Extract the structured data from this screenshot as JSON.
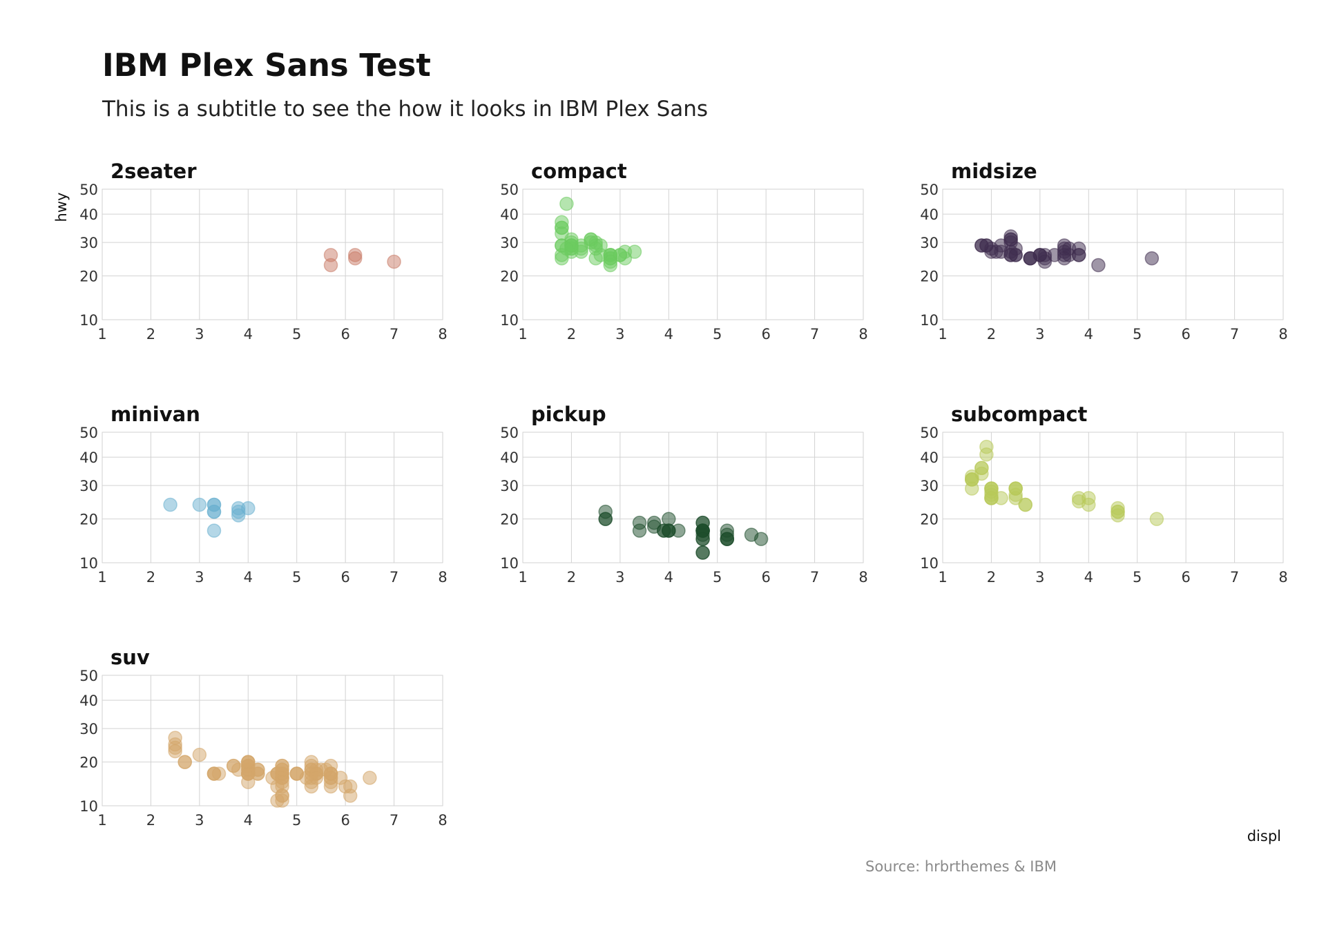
{
  "title": "IBM Plex Sans Test",
  "subtitle": "This is a subtitle to see the how it looks in IBM Plex Sans",
  "caption": "Source: hrbrthemes & IBM",
  "chart_data": {
    "type": "scatter",
    "xlabel": "displ",
    "ylabel": "hwy",
    "xlim": [
      1,
      8
    ],
    "ylim": [
      10,
      50
    ],
    "x_ticks": [
      1,
      2,
      3,
      4,
      5,
      6,
      7,
      8
    ],
    "y_ticks": [
      10,
      20,
      30,
      40,
      50
    ],
    "grid": true,
    "facets": [
      {
        "name": "2seater",
        "color": "#c97b67",
        "points": [
          [
            5.7,
            26
          ],
          [
            5.7,
            23
          ],
          [
            6.2,
            26
          ],
          [
            6.2,
            25
          ],
          [
            7.0,
            24
          ]
        ]
      },
      {
        "name": "compact",
        "color": "#6ccb5f",
        "points": [
          [
            1.8,
            29
          ],
          [
            1.8,
            29
          ],
          [
            2.0,
            31
          ],
          [
            2.0,
            30
          ],
          [
            2.8,
            26
          ],
          [
            2.8,
            26
          ],
          [
            3.1,
            27
          ],
          [
            1.8,
            26
          ],
          [
            1.8,
            25
          ],
          [
            2.0,
            28
          ],
          [
            2.0,
            27
          ],
          [
            2.8,
            25
          ],
          [
            2.8,
            25
          ],
          [
            3.1,
            25
          ],
          [
            2.2,
            27
          ],
          [
            2.2,
            29
          ],
          [
            2.4,
            31
          ],
          [
            2.4,
            31
          ],
          [
            3.0,
            26
          ],
          [
            3.0,
            26
          ],
          [
            3.3,
            27
          ],
          [
            1.8,
            35
          ],
          [
            1.8,
            37
          ],
          [
            1.8,
            35
          ],
          [
            1.9,
            44
          ],
          [
            2.0,
            29
          ],
          [
            2.0,
            29
          ],
          [
            2.0,
            28
          ],
          [
            2.0,
            29
          ],
          [
            2.5,
            29
          ],
          [
            2.5,
            30
          ],
          [
            2.8,
            26
          ],
          [
            2.8,
            23
          ],
          [
            2.8,
            24
          ],
          [
            2.6,
            26
          ],
          [
            2.5,
            25
          ],
          [
            2.2,
            28
          ],
          [
            1.8,
            33
          ],
          [
            2.4,
            30
          ],
          [
            2.6,
            29
          ],
          [
            2.5,
            28
          ],
          [
            1.9,
            28
          ]
        ]
      },
      {
        "name": "midsize",
        "color": "#3f2d4f",
        "points": [
          [
            2.4,
            26
          ],
          [
            2.4,
            26
          ],
          [
            2.5,
            26
          ],
          [
            3.1,
            25
          ],
          [
            3.5,
            29
          ],
          [
            3.6,
            26
          ],
          [
            2.4,
            27
          ],
          [
            3.0,
            26
          ],
          [
            3.3,
            26
          ],
          [
            3.8,
            26
          ],
          [
            2.8,
            25
          ],
          [
            3.1,
            26
          ],
          [
            4.2,
            23
          ],
          [
            5.3,
            25
          ],
          [
            2.2,
            29
          ],
          [
            2.2,
            27
          ],
          [
            2.4,
            31
          ],
          [
            2.4,
            31
          ],
          [
            3.0,
            26
          ],
          [
            3.0,
            26
          ],
          [
            3.5,
            28
          ],
          [
            1.8,
            29
          ],
          [
            1.8,
            29
          ],
          [
            2.0,
            28
          ],
          [
            2.0,
            27
          ],
          [
            2.8,
            25
          ],
          [
            2.8,
            25
          ],
          [
            3.1,
            24
          ],
          [
            1.9,
            29
          ],
          [
            2.1,
            27
          ],
          [
            2.4,
            30
          ],
          [
            2.4,
            32
          ],
          [
            2.5,
            28
          ],
          [
            2.5,
            26
          ],
          [
            3.5,
            27
          ],
          [
            3.5,
            26
          ],
          [
            3.6,
            28
          ],
          [
            3.8,
            28
          ],
          [
            3.8,
            26
          ],
          [
            3.5,
            25
          ],
          [
            1.9,
            29
          ]
        ]
      },
      {
        "name": "minivan",
        "color": "#6ab0d0",
        "points": [
          [
            2.4,
            24
          ],
          [
            3.0,
            24
          ],
          [
            3.3,
            22
          ],
          [
            3.3,
            22
          ],
          [
            3.3,
            24
          ],
          [
            3.3,
            24
          ],
          [
            3.3,
            17
          ],
          [
            3.8,
            22
          ],
          [
            3.8,
            21
          ],
          [
            3.8,
            23
          ],
          [
            4.0,
            23
          ]
        ]
      },
      {
        "name": "pickup",
        "color": "#1e4d2b",
        "points": [
          [
            2.7,
            20
          ],
          [
            2.7,
            20
          ],
          [
            2.7,
            22
          ],
          [
            3.4,
            17
          ],
          [
            3.4,
            19
          ],
          [
            4.0,
            17
          ],
          [
            4.7,
            17
          ],
          [
            4.7,
            15
          ],
          [
            4.7,
            17
          ],
          [
            5.2,
            15
          ],
          [
            5.7,
            16
          ],
          [
            5.9,
            15
          ],
          [
            4.7,
            17
          ],
          [
            4.7,
            12
          ],
          [
            4.7,
            17
          ],
          [
            4.7,
            16
          ],
          [
            4.7,
            12
          ],
          [
            4.7,
            17
          ],
          [
            5.2,
            16
          ],
          [
            5.2,
            15
          ],
          [
            3.7,
            19
          ],
          [
            3.7,
            18
          ],
          [
            3.9,
            17
          ],
          [
            3.9,
            17
          ],
          [
            4.7,
            17
          ],
          [
            4.7,
            19
          ],
          [
            4.7,
            19
          ],
          [
            5.2,
            17
          ],
          [
            5.2,
            15
          ],
          [
            4.0,
            20
          ],
          [
            4.2,
            17
          ],
          [
            4.0,
            17
          ],
          [
            4.0,
            17
          ],
          [
            4.7,
            15
          ]
        ]
      },
      {
        "name": "subcompact",
        "color": "#b8c95a",
        "points": [
          [
            3.8,
            26
          ],
          [
            3.8,
            25
          ],
          [
            4.0,
            26
          ],
          [
            4.0,
            24
          ],
          [
            4.6,
            21
          ],
          [
            4.6,
            22
          ],
          [
            4.6,
            23
          ],
          [
            4.6,
            22
          ],
          [
            5.4,
            20
          ],
          [
            1.6,
            33
          ],
          [
            1.6,
            32
          ],
          [
            1.6,
            32
          ],
          [
            1.6,
            29
          ],
          [
            1.6,
            32
          ],
          [
            1.8,
            34
          ],
          [
            1.8,
            36
          ],
          [
            1.8,
            36
          ],
          [
            2.0,
            29
          ],
          [
            2.0,
            26
          ],
          [
            2.0,
            27
          ],
          [
            2.0,
            29
          ],
          [
            2.0,
            26
          ],
          [
            2.0,
            28
          ],
          [
            2.2,
            26
          ],
          [
            2.5,
            26
          ],
          [
            2.5,
            29
          ],
          [
            2.5,
            29
          ],
          [
            2.7,
            24
          ],
          [
            2.7,
            24
          ],
          [
            1.9,
            44
          ],
          [
            1.9,
            41
          ],
          [
            2.0,
            29
          ],
          [
            2.0,
            26
          ],
          [
            2.5,
            27
          ],
          [
            2.5,
            29
          ]
        ]
      },
      {
        "name": "suv",
        "color": "#d3a56a",
        "points": [
          [
            4.2,
            17
          ],
          [
            4.2,
            17
          ],
          [
            4.7,
            17
          ],
          [
            4.7,
            16
          ],
          [
            5.7,
            16
          ],
          [
            6.5,
            16
          ],
          [
            5.3,
            14
          ],
          [
            5.3,
            15
          ],
          [
            5.7,
            15
          ],
          [
            6.0,
            14
          ],
          [
            5.7,
            16
          ],
          [
            5.3,
            16
          ],
          [
            5.3,
            18
          ],
          [
            5.3,
            18
          ],
          [
            5.7,
            17
          ],
          [
            6.1,
            12
          ],
          [
            4.0,
            19
          ],
          [
            4.0,
            18
          ],
          [
            4.6,
            14
          ],
          [
            5.0,
            17
          ],
          [
            4.0,
            19
          ],
          [
            4.0,
            20
          ],
          [
            4.7,
            17
          ],
          [
            4.6,
            17
          ],
          [
            4.7,
            16
          ],
          [
            4.7,
            12
          ],
          [
            5.4,
            17
          ],
          [
            5.4,
            18
          ],
          [
            5.4,
            17
          ],
          [
            3.3,
            17
          ],
          [
            3.3,
            17
          ],
          [
            3.8,
            18
          ],
          [
            3.7,
            19
          ],
          [
            4.7,
            12
          ],
          [
            4.0,
            19
          ],
          [
            4.0,
            17
          ],
          [
            4.6,
            17
          ],
          [
            5.0,
            17
          ],
          [
            4.2,
            18
          ],
          [
            4.2,
            18
          ],
          [
            4.6,
            17
          ],
          [
            5.4,
            17
          ],
          [
            5.4,
            16
          ],
          [
            4.0,
            17
          ],
          [
            4.0,
            20
          ],
          [
            4.7,
            19
          ],
          [
            4.7,
            17
          ],
          [
            5.7,
            17
          ],
          [
            5.7,
            19
          ],
          [
            2.5,
            25
          ],
          [
            2.5,
            24
          ],
          [
            2.5,
            23
          ],
          [
            2.5,
            27
          ],
          [
            2.7,
            20
          ],
          [
            2.7,
            20
          ],
          [
            3.4,
            17
          ],
          [
            4.0,
            17
          ],
          [
            4.0,
            20
          ],
          [
            4.7,
            15
          ],
          [
            5.7,
            17
          ],
          [
            6.1,
            14
          ],
          [
            5.3,
            20
          ],
          [
            5.3,
            19
          ],
          [
            5.9,
            16
          ],
          [
            3.0,
            22
          ],
          [
            3.7,
            19
          ],
          [
            4.0,
            17
          ],
          [
            4.7,
            16
          ],
          [
            4.5,
            16
          ],
          [
            4.7,
            19
          ],
          [
            4.7,
            18
          ],
          [
            5.3,
            17
          ],
          [
            5.7,
            14
          ],
          [
            3.3,
            17
          ],
          [
            4.0,
            18
          ],
          [
            4.7,
            18
          ],
          [
            5.0,
            17
          ],
          [
            5.6,
            18
          ],
          [
            4.0,
            15
          ],
          [
            4.7,
            14
          ],
          [
            4.7,
            11
          ],
          [
            4.6,
            11
          ],
          [
            5.2,
            16
          ],
          [
            5.5,
            18
          ]
        ]
      }
    ]
  }
}
